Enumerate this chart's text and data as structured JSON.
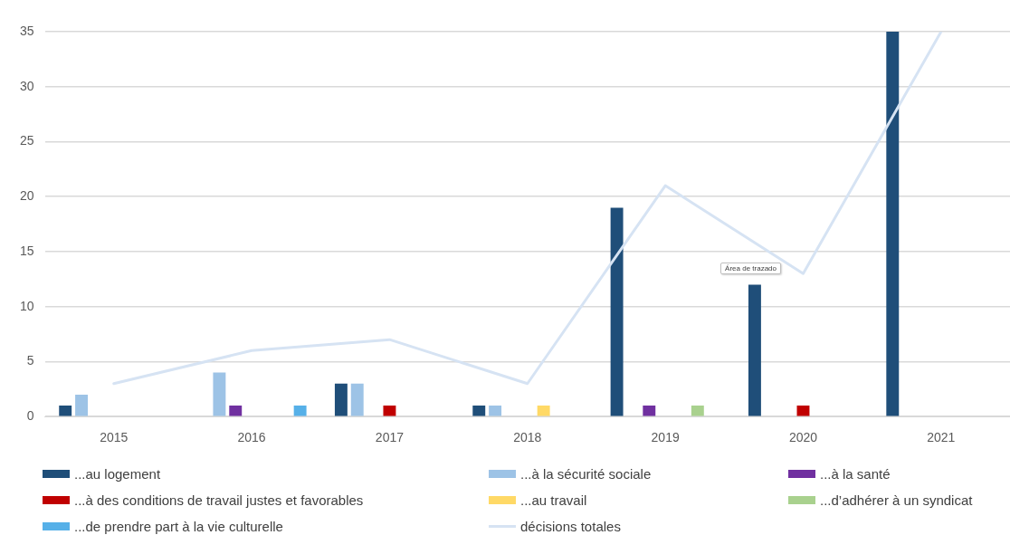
{
  "chart_data": {
    "type": "bar",
    "categories": [
      "2015",
      "2016",
      "2017",
      "2018",
      "2019",
      "2020",
      "2021"
    ],
    "series": [
      {
        "name": "...au logement",
        "color": "#1f4e79",
        "values": [
          1,
          null,
          3,
          1,
          19,
          12,
          35
        ]
      },
      {
        "name": "...à la sécurité sociale",
        "color": "#9dc3e6",
        "values": [
          2,
          4,
          3,
          1,
          null,
          null,
          null
        ]
      },
      {
        "name": "...à la santé",
        "color": "#7030a0",
        "values": [
          null,
          1,
          null,
          null,
          1,
          null,
          null
        ]
      },
      {
        "name": "...à des conditions de travail justes et favorables",
        "color": "#c00000",
        "values": [
          null,
          null,
          1,
          null,
          null,
          1,
          null
        ]
      },
      {
        "name": "...au travail",
        "color": "#ffd966",
        "values": [
          null,
          null,
          null,
          1,
          null,
          null,
          null
        ]
      },
      {
        "name": "...d’adhérer à un syndicat",
        "color": "#a9d18e",
        "values": [
          null,
          null,
          null,
          null,
          1,
          null,
          null
        ]
      },
      {
        "name": "...de prendre part à la vie culturelle",
        "color": "#56b0e8",
        "values": [
          null,
          1,
          null,
          null,
          null,
          null,
          null
        ]
      },
      {
        "name": "décisions totales",
        "type": "line",
        "color": "#d6e3f3",
        "values": [
          3,
          6,
          7,
          3,
          21,
          13,
          35
        ]
      }
    ],
    "ylim": [
      0,
      35
    ],
    "yticks": [
      0,
      5,
      10,
      15,
      20,
      25,
      30,
      35
    ],
    "grid": "y",
    "legend": "bottom",
    "annotations": [
      "Área de trazado"
    ]
  }
}
